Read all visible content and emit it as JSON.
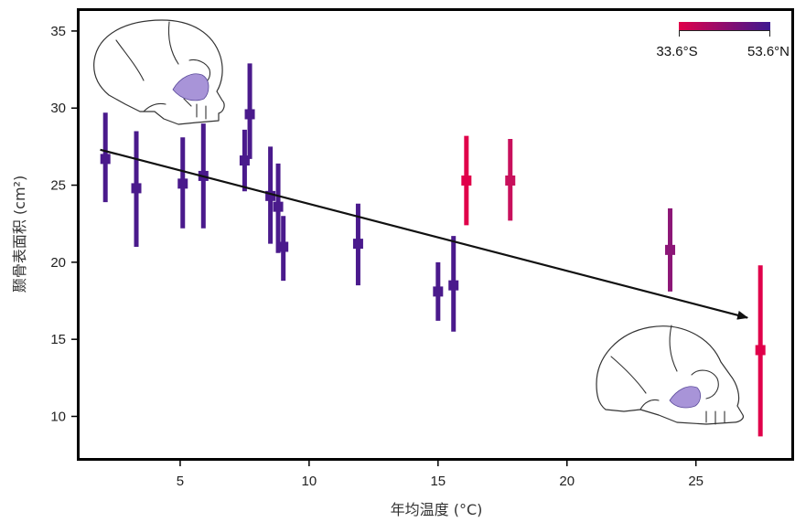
{
  "chart_data": {
    "type": "scatter",
    "title": "",
    "xlabel": "年均温度 (°C)",
    "ylabel": "颞骨表面积 (cm²)",
    "xlim": [
      1.1,
      28.7
    ],
    "ylim": [
      7.3,
      36.3
    ],
    "xticks": [
      5,
      10,
      15,
      20,
      25
    ],
    "yticks": [
      10,
      15,
      20,
      25,
      30,
      35
    ],
    "legend": {
      "type": "colorbar",
      "placement": "top-right",
      "min_label": "33.6°S",
      "max_label": "53.6°N",
      "color_low": "#e0004a",
      "color_high": "#3d1890"
    },
    "points": [
      {
        "x": 2.1,
        "y": 26.7,
        "low": 23.9,
        "high": 29.7,
        "color": "#4a1a8c"
      },
      {
        "x": 3.3,
        "y": 24.8,
        "low": 21.0,
        "high": 28.5,
        "color": "#4a1a8c"
      },
      {
        "x": 5.1,
        "y": 25.1,
        "low": 22.2,
        "high": 28.1,
        "color": "#4a1a8c"
      },
      {
        "x": 5.9,
        "y": 25.6,
        "low": 22.2,
        "high": 29.0,
        "color": "#4a1a8c"
      },
      {
        "x": 7.5,
        "y": 26.6,
        "low": 24.6,
        "high": 28.6,
        "color": "#4a1a8c"
      },
      {
        "x": 7.7,
        "y": 29.6,
        "low": 26.7,
        "high": 32.9,
        "color": "#4a1a8c"
      },
      {
        "x": 8.5,
        "y": 24.3,
        "low": 21.2,
        "high": 27.5,
        "color": "#4a1a8c"
      },
      {
        "x": 8.8,
        "y": 23.6,
        "low": 20.6,
        "high": 26.4,
        "color": "#4a1a8c"
      },
      {
        "x": 9.0,
        "y": 21.0,
        "low": 18.8,
        "high": 23.0,
        "color": "#4a1a8c"
      },
      {
        "x": 11.9,
        "y": 21.2,
        "low": 18.5,
        "high": 23.8,
        "color": "#4a1a8c"
      },
      {
        "x": 15.0,
        "y": 18.1,
        "low": 16.2,
        "high": 20.0,
        "color": "#4a1a8c"
      },
      {
        "x": 15.6,
        "y": 18.5,
        "low": 15.5,
        "high": 21.7,
        "color": "#4a1a8c"
      },
      {
        "x": 16.1,
        "y": 25.3,
        "low": 22.4,
        "high": 28.2,
        "color": "#e0004a"
      },
      {
        "x": 17.8,
        "y": 25.3,
        "low": 22.7,
        "high": 28.0,
        "color": "#c8105c"
      },
      {
        "x": 24.0,
        "y": 20.8,
        "low": 18.1,
        "high": 23.5,
        "color": "#8c1677"
      },
      {
        "x": 27.5,
        "y": 14.3,
        "low": 8.7,
        "high": 19.8,
        "color": "#e0004a"
      }
    ],
    "trend": {
      "x": [
        1.9,
        27.0
      ],
      "y": [
        27.3,
        16.4
      ],
      "arrow": true,
      "color": "#111111"
    },
    "grid": false
  },
  "icons": {
    "top_left": "skull-icon",
    "bottom_right": "skull-icon"
  }
}
